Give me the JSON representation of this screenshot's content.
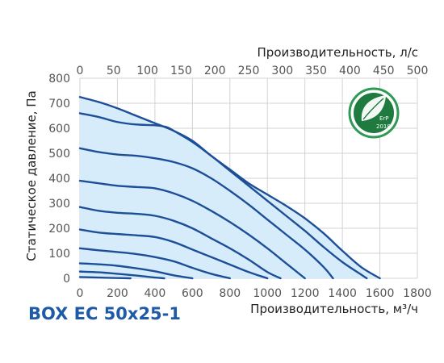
{
  "chart_data": {
    "type": "line",
    "model_label": "BOX EC 50x25-1",
    "xlabel_bottom": "Производительность, м³/ч",
    "xlabel_top": "Производительность, л/с",
    "ylabel": "Статическое давление, Па",
    "xlim": [
      0,
      1800
    ],
    "ylim": [
      0,
      800
    ],
    "x_ticks": [
      "0",
      "200",
      "400",
      "600",
      "800",
      "1000",
      "1200",
      "1400",
      "1600",
      "1800"
    ],
    "x2_ticks": [
      "0",
      "50",
      "100",
      "150",
      "200",
      "250",
      "300",
      "350",
      "400",
      "450",
      "500"
    ],
    "y_ticks": [
      "0",
      "100",
      "200",
      "300",
      "400",
      "500",
      "600",
      "700",
      "800"
    ],
    "grid": true,
    "badge": {
      "text": "ErP",
      "year": "2018"
    },
    "colors": {
      "curve": "#1d4f98",
      "area": "#d6ecfa",
      "grid": "#d3d3d3",
      "badge_ring": "#2e9a55",
      "badge_fill": "#1e7a3e",
      "model": "#1f5aa6"
    },
    "series": [
      {
        "x": [
          0,
          100,
          200,
          300,
          400,
          500,
          600,
          700,
          800,
          900,
          1000,
          1100,
          1200,
          1300,
          1400,
          1500,
          1600
        ],
        "y": [
          725,
          705,
          680,
          650,
          620,
          590,
          550,
          490,
          435,
          380,
          335,
          290,
          240,
          180,
          110,
          45,
          0
        ]
      },
      {
        "x": [
          0,
          100,
          200,
          300,
          400,
          460,
          500,
          600,
          700,
          800,
          900,
          1000,
          1100,
          1200,
          1300,
          1400,
          1500,
          1530
        ],
        "y": [
          660,
          645,
          625,
          615,
          612,
          605,
          590,
          545,
          490,
          430,
          370,
          310,
          250,
          190,
          125,
          65,
          15,
          0
        ]
      },
      {
        "x": [
          0,
          100,
          200,
          300,
          400,
          500,
          600,
          700,
          800,
          900,
          1000,
          1100,
          1200,
          1300,
          1350
        ],
        "y": [
          520,
          505,
          495,
          490,
          480,
          465,
          440,
          400,
          350,
          295,
          235,
          175,
          115,
          45,
          0
        ]
      },
      {
        "x": [
          0,
          100,
          200,
          300,
          400,
          500,
          600,
          700,
          800,
          900,
          1000,
          1100,
          1200
        ],
        "y": [
          390,
          380,
          370,
          365,
          360,
          340,
          310,
          270,
          225,
          175,
          120,
          60,
          0
        ]
      },
      {
        "x": [
          0,
          100,
          200,
          300,
          400,
          500,
          600,
          700,
          800,
          900,
          1000,
          1070
        ],
        "y": [
          285,
          270,
          262,
          258,
          250,
          230,
          200,
          160,
          120,
          75,
          25,
          0
        ]
      },
      {
        "x": [
          0,
          100,
          200,
          300,
          400,
          500,
          600,
          700,
          800,
          900,
          1000
        ],
        "y": [
          195,
          183,
          177,
          172,
          165,
          145,
          115,
          85,
          55,
          25,
          0
        ]
      },
      {
        "x": [
          0,
          100,
          200,
          300,
          400,
          500,
          600,
          700,
          800
        ],
        "y": [
          120,
          112,
          105,
          97,
          85,
          68,
          42,
          18,
          0
        ]
      },
      {
        "x": [
          0,
          100,
          200,
          300,
          400,
          500,
          600
        ],
        "y": [
          60,
          56,
          50,
          40,
          28,
          12,
          0
        ]
      },
      {
        "x": [
          0,
          100,
          200,
          300,
          400,
          450
        ],
        "y": [
          27,
          24,
          18,
          11,
          3,
          0
        ]
      },
      {
        "x": [
          0,
          100,
          200,
          270
        ],
        "y": [
          5,
          3,
          1,
          0
        ]
      }
    ]
  }
}
